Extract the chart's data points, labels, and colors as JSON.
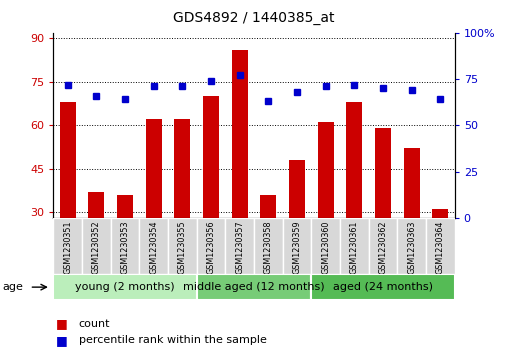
{
  "title": "GDS4892 / 1440385_at",
  "samples": [
    "GSM1230351",
    "GSM1230352",
    "GSM1230353",
    "GSM1230354",
    "GSM1230355",
    "GSM1230356",
    "GSM1230357",
    "GSM1230358",
    "GSM1230359",
    "GSM1230360",
    "GSM1230361",
    "GSM1230362",
    "GSM1230363",
    "GSM1230364"
  ],
  "counts": [
    68,
    37,
    36,
    62,
    62,
    70,
    86,
    36,
    48,
    61,
    68,
    59,
    52,
    31
  ],
  "percentile_ranks": [
    72,
    66,
    64,
    71,
    71,
    74,
    77,
    63,
    68,
    71,
    72,
    70,
    69,
    64
  ],
  "ylim_left": [
    28,
    92
  ],
  "ylim_right": [
    0,
    100
  ],
  "yticks_left": [
    30,
    45,
    60,
    75,
    90
  ],
  "yticks_right": [
    0,
    25,
    50,
    75,
    100
  ],
  "groups": [
    {
      "label": "young (2 months)",
      "start": 0,
      "end": 5
    },
    {
      "label": "middle aged (12 months)",
      "start": 5,
      "end": 9
    },
    {
      "label": "aged (24 months)",
      "start": 9,
      "end": 14
    }
  ],
  "group_colors": [
    "#bbeebb",
    "#77cc77",
    "#55bb55"
  ],
  "bar_color": "#cc0000",
  "dot_color": "#0000cc",
  "background_color": "#ffffff",
  "sample_box_color": "#d8d8d8",
  "tick_label_color_left": "#cc0000",
  "tick_label_color_right": "#0000cc",
  "age_label": "age",
  "legend_count_label": "count",
  "legend_percentile_label": "percentile rank within the sample",
  "title_fontsize": 10,
  "tick_fontsize": 8,
  "sample_fontsize": 5.8,
  "group_fontsize": 8,
  "legend_fontsize": 8
}
